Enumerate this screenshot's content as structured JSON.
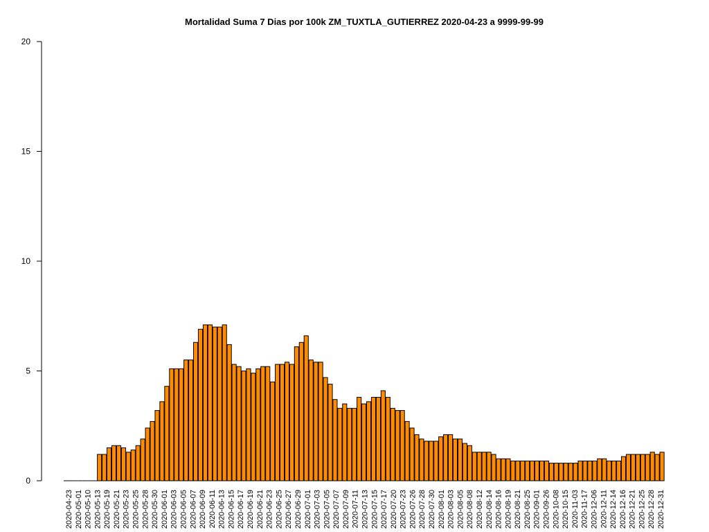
{
  "chart_data": {
    "type": "bar",
    "title": "Mortalidad Suma 7 Dias por 100k ZM_TUXTLA_GUTIERREZ 2020-04-23 a 9999-99-99",
    "xlabel": "",
    "ylabel": "",
    "ylim": [
      0,
      20
    ],
    "yticks": [
      0,
      5,
      10,
      15,
      20
    ],
    "grid": false,
    "colors": {
      "bar_fill": "#ff8c00",
      "bar_stroke": "#000000"
    },
    "x_tick_labels": [
      "2020-04-23",
      "2020-05-01",
      "2020-05-10",
      "2020-05-13",
      "2020-05-19",
      "2020-05-21",
      "2020-05-23",
      "2020-05-25",
      "2020-05-28",
      "2020-05-30",
      "2020-06-01",
      "2020-06-03",
      "2020-06-05",
      "2020-06-07",
      "2020-06-09",
      "2020-06-11",
      "2020-06-13",
      "2020-06-15",
      "2020-06-17",
      "2020-06-19",
      "2020-06-21",
      "2020-06-23",
      "2020-06-25",
      "2020-06-27",
      "2020-06-29",
      "2020-07-01",
      "2020-07-03",
      "2020-07-05",
      "2020-07-07",
      "2020-07-09",
      "2020-07-11",
      "2020-07-13",
      "2020-07-15",
      "2020-07-17",
      "2020-07-20",
      "2020-07-23",
      "2020-07-26",
      "2020-07-28",
      "2020-07-30",
      "2020-08-01",
      "2020-08-03",
      "2020-08-05",
      "2020-08-08",
      "2020-08-12",
      "2020-08-14",
      "2020-08-16",
      "2020-08-19",
      "2020-08-21",
      "2020-08-25",
      "2020-09-01",
      "2020-09-26",
      "2020-10-08",
      "2020-10-15",
      "2020-11-03",
      "2020-11-17",
      "2020-12-06",
      "2020-12-11",
      "2020-12-14",
      "2020-12-16",
      "2020-12-21",
      "2020-12-25",
      "2020-12-28",
      "2020-12-31"
    ],
    "values": [
      0,
      0,
      0,
      0,
      0,
      0,
      0,
      1.2,
      1.2,
      1.5,
      1.6,
      1.6,
      1.5,
      1.3,
      1.4,
      1.6,
      1.9,
      2.4,
      2.7,
      3.2,
      3.6,
      4.3,
      5.1,
      5.1,
      5.1,
      5.5,
      5.5,
      6.3,
      6.9,
      7.1,
      7.1,
      7.0,
      7.0,
      7.1,
      6.2,
      5.3,
      5.2,
      5.0,
      5.1,
      4.9,
      5.1,
      5.2,
      5.2,
      4.5,
      5.3,
      5.3,
      5.4,
      5.3,
      6.1,
      6.3,
      6.6,
      5.5,
      5.4,
      5.4,
      4.7,
      4.4,
      3.7,
      3.3,
      3.5,
      3.3,
      3.3,
      3.8,
      3.5,
      3.6,
      3.8,
      3.8,
      4.1,
      3.8,
      3.3,
      3.2,
      3.2,
      2.7,
      2.4,
      2.1,
      1.9,
      1.8,
      1.8,
      1.8,
      2.0,
      2.1,
      2.1,
      1.9,
      1.9,
      1.7,
      1.6,
      1.3,
      1.3,
      1.3,
      1.3,
      1.2,
      1.0,
      1.0,
      1.0,
      0.9,
      0.9,
      0.9,
      0.9,
      0.9,
      0.9,
      0.9,
      0.9,
      0.8,
      0.8,
      0.8,
      0.8,
      0.8,
      0.8,
      0.9,
      0.9,
      0.9,
      0.9,
      1.0,
      1.0,
      0.9,
      0.9,
      0.9,
      1.1,
      1.2,
      1.2,
      1.2,
      1.2,
      1.2,
      1.3,
      1.2,
      1.3
    ]
  }
}
